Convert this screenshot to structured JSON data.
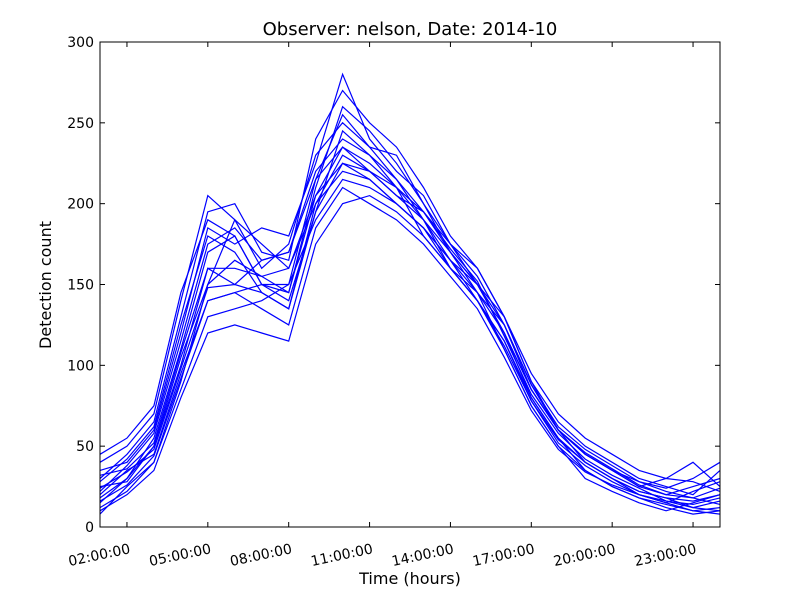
{
  "chart_data": {
    "type": "line",
    "title": "Observer: nelson, Date: 2014-10",
    "xlabel": "Time (hours)",
    "ylabel": "Detection count",
    "ylim": [
      0,
      300
    ],
    "xlim_hours": [
      1.0,
      24.0
    ],
    "grid": false,
    "legend": "none",
    "line_color": "#0000ff",
    "x_tick_labels": [
      "02:00:00",
      "05:00:00",
      "08:00:00",
      "11:00:00",
      "14:00:00",
      "17:00:00",
      "20:00:00",
      "23:00:00"
    ],
    "y_tick_labels": [
      "0",
      "50",
      "100",
      "150",
      "200",
      "250",
      "300"
    ],
    "x_hours": [
      1,
      2,
      3,
      4,
      5,
      6,
      7,
      8,
      9,
      10,
      11,
      12,
      13,
      14,
      15,
      16,
      17,
      18,
      19,
      20,
      21,
      22,
      23,
      24
    ],
    "series": [
      {
        "values": [
          8,
          25,
          40,
          90,
          150,
          190,
          175,
          160,
          200,
          230,
          220,
          210,
          195,
          175,
          160,
          130,
          90,
          60,
          40,
          30,
          20,
          15,
          10,
          8
        ]
      },
      {
        "values": [
          15,
          30,
          55,
          110,
          170,
          180,
          150,
          145,
          210,
          260,
          245,
          225,
          200,
          170,
          150,
          120,
          80,
          55,
          35,
          25,
          18,
          12,
          8,
          10
        ]
      },
      {
        "values": [
          25,
          28,
          50,
          100,
          160,
          150,
          165,
          170,
          215,
          255,
          235,
          215,
          190,
          160,
          145,
          110,
          75,
          50,
          30,
          22,
          15,
          10,
          15,
          20
        ]
      },
      {
        "values": [
          35,
          40,
          60,
          120,
          185,
          175,
          185,
          180,
          225,
          280,
          240,
          220,
          205,
          175,
          155,
          125,
          85,
          60,
          45,
          35,
          25,
          20,
          25,
          30
        ]
      },
      {
        "values": [
          20,
          35,
          45,
          95,
          140,
          145,
          150,
          140,
          195,
          245,
          230,
          210,
          180,
          160,
          140,
          115,
          80,
          55,
          40,
          30,
          22,
          18,
          12,
          16
        ]
      },
      {
        "values": [
          30,
          45,
          65,
          130,
          195,
          200,
          170,
          165,
          240,
          270,
          250,
          235,
          210,
          180,
          160,
          130,
          90,
          65,
          50,
          40,
          30,
          25,
          20,
          35
        ]
      },
      {
        "values": [
          12,
          22,
          40,
          85,
          130,
          135,
          140,
          150,
          190,
          215,
          210,
          200,
          185,
          165,
          150,
          120,
          85,
          60,
          45,
          35,
          25,
          30,
          40,
          25
        ]
      },
      {
        "values": [
          40,
          50,
          70,
          140,
          205,
          190,
          160,
          175,
          230,
          250,
          235,
          230,
          200,
          175,
          150,
          130,
          95,
          70,
          55,
          45,
          35,
          30,
          28,
          22
        ]
      },
      {
        "values": [
          18,
          30,
          50,
          105,
          150,
          165,
          155,
          160,
          205,
          225,
          220,
          205,
          190,
          170,
          145,
          125,
          88,
          62,
          48,
          38,
          28,
          22,
          18,
          14
        ]
      },
      {
        "values": [
          22,
          38,
          58,
          115,
          175,
          185,
          165,
          170,
          220,
          240,
          230,
          215,
          195,
          172,
          152,
          118,
          82,
          58,
          42,
          32,
          24,
          16,
          14,
          18
        ]
      },
      {
        "values": [
          28,
          42,
          62,
          125,
          180,
          170,
          145,
          135,
          200,
          220,
          215,
          200,
          185,
          165,
          140,
          115,
          78,
          52,
          38,
          28,
          20,
          15,
          22,
          28
        ]
      },
      {
        "values": [
          10,
          20,
          35,
          80,
          120,
          125,
          120,
          115,
          175,
          200,
          205,
          195,
          180,
          160,
          140,
          110,
          75,
          50,
          35,
          25,
          18,
          14,
          10,
          12
        ]
      },
      {
        "values": [
          45,
          55,
          75,
          145,
          190,
          180,
          150,
          150,
          215,
          235,
          225,
          210,
          190,
          165,
          145,
          120,
          85,
          60,
          45,
          35,
          28,
          24,
          30,
          40
        ]
      },
      {
        "values": [
          16,
          26,
          44,
          92,
          140,
          145,
          135,
          125,
          185,
          210,
          200,
          190,
          175,
          155,
          135,
          105,
          72,
          48,
          34,
          26,
          20,
          16,
          12,
          10
        ]
      },
      {
        "values": [
          32,
          36,
          52,
          108,
          160,
          160,
          155,
          145,
          205,
          235,
          220,
          205,
          195,
          170,
          150,
          125,
          88,
          60,
          46,
          36,
          26,
          20,
          18,
          24
        ]
      },
      {
        "values": [
          24,
          34,
          48,
          98,
          148,
          150,
          145,
          135,
          195,
          225,
          215,
          200,
          185,
          160,
          140,
          112,
          78,
          54,
          40,
          30,
          22,
          18,
          16,
          20
        ]
      }
    ]
  }
}
